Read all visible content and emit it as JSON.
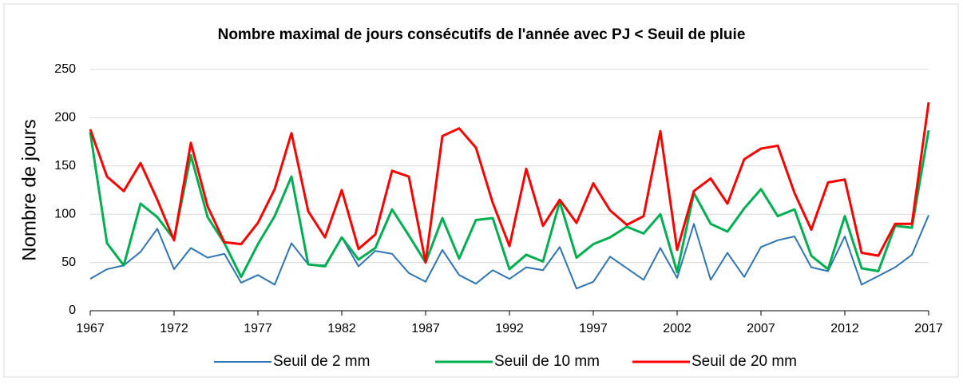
{
  "chart_data": {
    "type": "line",
    "title": "Nombre maximal de jours consécutifs de l'année avec PJ < Seuil de pluie",
    "y_label": "Nombre de jours",
    "x": [
      1967,
      1968,
      1969,
      1970,
      1971,
      1972,
      1973,
      1974,
      1975,
      1976,
      1977,
      1978,
      1979,
      1980,
      1981,
      1982,
      1983,
      1984,
      1985,
      1986,
      1987,
      1988,
      1989,
      1990,
      1991,
      1992,
      1993,
      1994,
      1995,
      1996,
      1997,
      1998,
      1999,
      2000,
      2001,
      2002,
      2003,
      2004,
      2005,
      2006,
      2007,
      2008,
      2009,
      2010,
      2011,
      2012,
      2013,
      2014,
      2015,
      2016,
      2017
    ],
    "xlim": [
      1967,
      2017
    ],
    "xticks": [
      1967,
      1972,
      1977,
      1982,
      1987,
      1992,
      1997,
      2002,
      2007,
      2012,
      2017
    ],
    "ylim": [
      0,
      250
    ],
    "yticks": [
      0,
      50,
      100,
      150,
      200,
      250
    ],
    "grid": true,
    "legend": "bottom",
    "series": [
      {
        "name": "Seuil de 2 mm",
        "color": "#2e75b6",
        "values": [
          33,
          43,
          47,
          61,
          85,
          43,
          65,
          55,
          59,
          29,
          37,
          27,
          70,
          48,
          47,
          76,
          46,
          62,
          59,
          39,
          30,
          63,
          37,
          28,
          42,
          33,
          45,
          42,
          66,
          23,
          30,
          56,
          44,
          32,
          65,
          34,
          90,
          32,
          60,
          35,
          66,
          73,
          77,
          45,
          41,
          77,
          27,
          36,
          45,
          58,
          99
        ]
      },
      {
        "name": "Seuil de 10 mm",
        "color": "#00b050",
        "values": [
          185,
          70,
          47,
          111,
          97,
          74,
          161,
          97,
          70,
          35,
          69,
          98,
          139,
          48,
          46,
          76,
          53,
          65,
          105,
          78,
          50,
          96,
          54,
          94,
          96,
          43,
          58,
          51,
          113,
          55,
          69,
          76,
          87,
          80,
          100,
          40,
          122,
          90,
          82,
          106,
          126,
          98,
          105,
          57,
          43,
          98,
          44,
          41,
          88,
          86,
          187
        ]
      },
      {
        "name": "Seuil de 20 mm",
        "color": "#ff0000",
        "values": [
          188,
          139,
          124,
          153,
          115,
          73,
          174,
          108,
          71,
          69,
          91,
          126,
          184,
          103,
          76,
          125,
          64,
          79,
          145,
          139,
          50,
          181,
          189,
          169,
          112,
          67,
          147,
          88,
          115,
          91,
          132,
          104,
          89,
          98,
          186,
          63,
          124,
          137,
          111,
          157,
          168,
          171,
          122,
          84,
          133,
          136,
          60,
          57,
          90,
          90,
          216
        ]
      }
    ]
  }
}
